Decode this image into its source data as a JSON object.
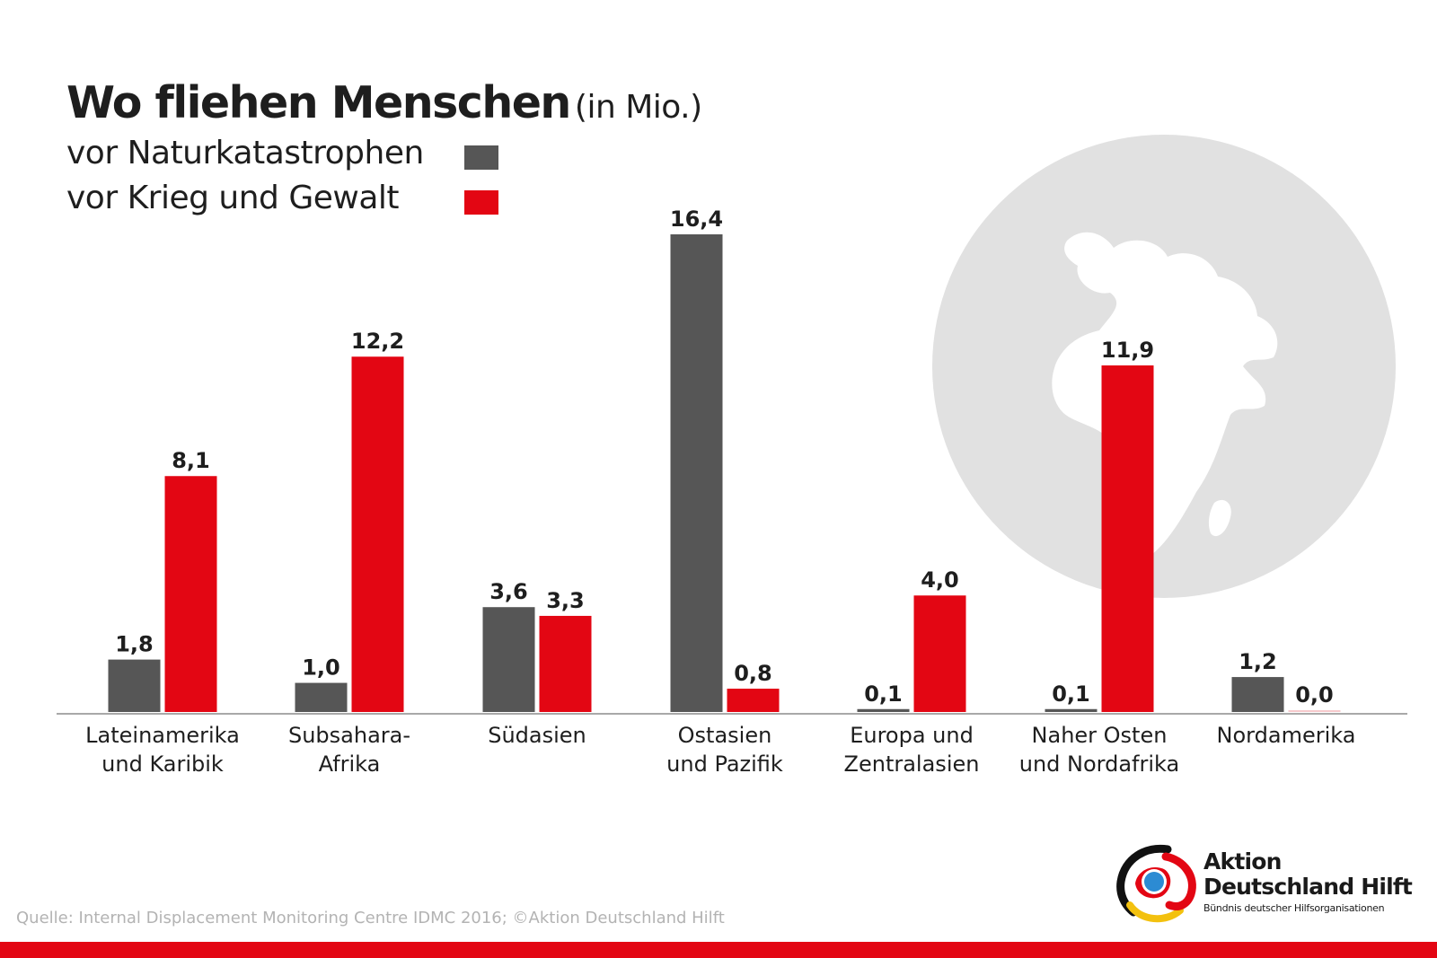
{
  "colors": {
    "natural": "#565656",
    "conflict": "#e30613",
    "globe": "#e1e1e1",
    "axis": "#a8a8a8",
    "footer": "#e30613"
  },
  "header": {
    "title_main": "Wo fliehen Menschen",
    "title_unit": "(in Mio.)"
  },
  "chart_data": {
    "type": "bar",
    "title": "Wo fliehen Menschen (in Mio.)",
    "xlabel": "",
    "ylabel": "",
    "ylim": [
      0,
      16.4
    ],
    "grid": false,
    "legend": "top-left",
    "categories": [
      [
        "Lateinamerika",
        "und Karibik"
      ],
      [
        "Subsahara-",
        "Afrika"
      ],
      [
        "Südasien"
      ],
      [
        "Ostasien",
        "und Pazifik"
      ],
      [
        "Europa und",
        "Zentralasien"
      ],
      [
        "Naher Osten",
        "und Nordafrika"
      ],
      [
        "Nordamerika"
      ]
    ],
    "series": [
      {
        "name": "vor Naturkatastrophen",
        "color": "#565656",
        "values": [
          1.8,
          1.0,
          3.6,
          16.4,
          0.1,
          0.1,
          1.2
        ],
        "labels": [
          "1,8",
          "1,0",
          "3,6",
          "16,4",
          "0,1",
          "0,1",
          "1,2"
        ]
      },
      {
        "name": "vor Krieg und Gewalt",
        "color": "#e30613",
        "values": [
          8.1,
          12.2,
          3.3,
          0.8,
          4.0,
          11.9,
          0.0
        ],
        "labels": [
          "8,1",
          "12,2",
          "3,3",
          "0,8",
          "4,0",
          "11,9",
          "0,0"
        ]
      }
    ]
  },
  "footer": {
    "source": "Quelle: Internal Displacement Monitoring Centre IDMC 2016; ©Aktion Deutschland Hilft"
  },
  "brand": {
    "line1": "Aktion",
    "line2": "Deutschland Hilft",
    "line3": "Bündnis deutscher Hilfsorganisationen"
  }
}
